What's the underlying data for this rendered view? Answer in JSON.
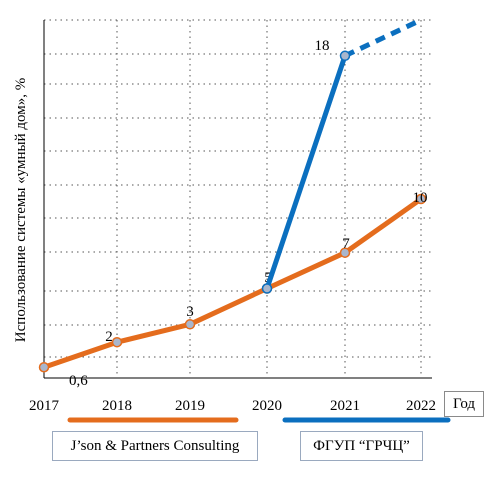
{
  "chart_data": {
    "type": "line",
    "ylabel": "Использование системы «умный дом», %",
    "xlabel": "Год",
    "x": [
      "2017",
      "2018",
      "2019",
      "2020",
      "2021",
      "2022"
    ],
    "ylim": [
      0,
      20
    ],
    "grid": true,
    "series": [
      {
        "name": "J’son & Partners Consulting",
        "color": "#E46C1D",
        "values": [
          0.6,
          2,
          3,
          5,
          7,
          10
        ],
        "labels": [
          "0,6",
          "2",
          "3",
          "5",
          "7",
          "10"
        ]
      },
      {
        "name": "ФГУП “ГРЧЦ”",
        "color": "#0B6FBF",
        "values": [
          null,
          null,
          null,
          5,
          18,
          null
        ],
        "labels": [
          "",
          "",
          "",
          "",
          "18",
          ""
        ],
        "projection_dashed": true
      }
    ]
  }
}
